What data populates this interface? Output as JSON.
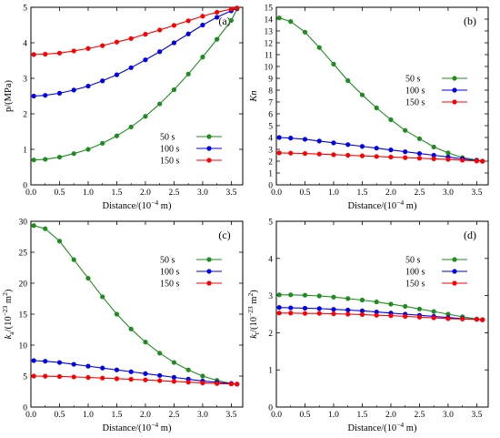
{
  "chart_data": [
    {
      "type": "line",
      "panel_label": "(a)",
      "xlabel": "Distance/(10",
      "xlabel_exp": "−4",
      "xlabel_end": " m)",
      "ylabel": "p/(MPa)",
      "xlim": [
        0,
        3.7
      ],
      "ylim": [
        0,
        5
      ],
      "xticks": [
        "0.0",
        "0.5",
        "1.0",
        "1.5",
        "2.0",
        "2.5",
        "3.0",
        "3.5"
      ],
      "yticks": [
        "0",
        "1",
        "2",
        "3",
        "4",
        "5"
      ],
      "legend_position": "bottom-right",
      "x": [
        0.05,
        0.25,
        0.5,
        0.75,
        1.0,
        1.25,
        1.5,
        1.75,
        2.0,
        2.25,
        2.5,
        2.75,
        3.0,
        3.25,
        3.5,
        3.6
      ],
      "series": [
        {
          "name": "50   s",
          "color": "#1e8c1e",
          "values": [
            0.7,
            0.72,
            0.78,
            0.88,
            1.0,
            1.17,
            1.38,
            1.63,
            1.93,
            2.28,
            2.68,
            3.12,
            3.6,
            4.1,
            4.63,
            4.95
          ]
        },
        {
          "name": "100  s",
          "color": "#0000ee",
          "values": [
            2.5,
            2.52,
            2.58,
            2.67,
            2.78,
            2.93,
            3.1,
            3.3,
            3.52,
            3.75,
            4.0,
            4.25,
            4.5,
            4.72,
            4.9,
            4.97
          ]
        },
        {
          "name": "150  s",
          "color": "#ff0000",
          "values": [
            3.67,
            3.68,
            3.71,
            3.77,
            3.84,
            3.92,
            4.02,
            4.12,
            4.24,
            4.36,
            4.49,
            4.62,
            4.75,
            4.86,
            4.95,
            4.98
          ]
        }
      ]
    },
    {
      "type": "line",
      "panel_label": "(b)",
      "xlabel": "Distance/(10",
      "xlabel_exp": "−4",
      "xlabel_end": " m)",
      "ylabel": "Kn",
      "xlim": [
        0,
        3.7
      ],
      "ylim": [
        0,
        15
      ],
      "xticks": [
        "0.0",
        "0.5",
        "1.0",
        "1.5",
        "2.0",
        "2.5",
        "3.0",
        "3.5"
      ],
      "yticks": [
        "0",
        "1",
        "2",
        "3",
        "4",
        "5",
        "6",
        "7",
        "8",
        "9",
        "10",
        "11",
        "12",
        "13",
        "14",
        "15"
      ],
      "legend_position": "center-right",
      "x": [
        0.05,
        0.25,
        0.5,
        0.75,
        1.0,
        1.25,
        1.5,
        1.75,
        2.0,
        2.25,
        2.5,
        2.75,
        3.0,
        3.25,
        3.5,
        3.6
      ],
      "series": [
        {
          "name": "50   s",
          "color": "#1e8c1e",
          "values": [
            14.1,
            13.8,
            12.9,
            11.6,
            10.2,
            8.8,
            7.6,
            6.5,
            5.5,
            4.6,
            3.9,
            3.2,
            2.7,
            2.3,
            2.1,
            2.0
          ]
        },
        {
          "name": "100  s",
          "color": "#0000ee",
          "values": [
            4.0,
            3.95,
            3.85,
            3.7,
            3.55,
            3.4,
            3.25,
            3.1,
            2.95,
            2.8,
            2.65,
            2.5,
            2.35,
            2.2,
            2.05,
            2.0
          ]
        },
        {
          "name": "150  s",
          "color": "#ff0000",
          "values": [
            2.7,
            2.68,
            2.65,
            2.6,
            2.55,
            2.5,
            2.45,
            2.4,
            2.35,
            2.3,
            2.25,
            2.2,
            2.15,
            2.08,
            2.02,
            2.0
          ]
        }
      ]
    },
    {
      "type": "line",
      "panel_label": "(c)",
      "xlabel": "Distance/(10",
      "xlabel_exp": "−4",
      "xlabel_end": " m)",
      "ylabel": "k",
      "ylabel_sub": "a",
      "ylabel_mid": "/(10",
      "ylabel_exp": "−23",
      "ylabel_end": " m",
      "ylabel_exp2": "2",
      "ylabel_close": ")",
      "xlim": [
        0,
        3.7
      ],
      "ylim": [
        0,
        30
      ],
      "xticks": [
        "0.0",
        "0.5",
        "1.0",
        "1.5",
        "2.0",
        "2.5",
        "3.0",
        "3.5"
      ],
      "yticks": [
        "0",
        "5",
        "10",
        "15",
        "20",
        "25",
        "30"
      ],
      "legend_position": "top-right",
      "x": [
        0.05,
        0.25,
        0.5,
        0.75,
        1.0,
        1.25,
        1.5,
        1.75,
        2.0,
        2.25,
        2.5,
        2.75,
        3.0,
        3.25,
        3.5,
        3.6
      ],
      "series": [
        {
          "name": "50   s",
          "color": "#1e8c1e",
          "values": [
            29.3,
            28.8,
            26.8,
            23.8,
            20.8,
            17.8,
            15.0,
            12.6,
            10.5,
            8.7,
            7.2,
            6.0,
            5.0,
            4.3,
            3.8,
            3.7
          ]
        },
        {
          "name": "100  s",
          "color": "#0000ee",
          "values": [
            7.5,
            7.4,
            7.2,
            6.9,
            6.6,
            6.3,
            6.0,
            5.7,
            5.4,
            5.1,
            4.8,
            4.5,
            4.2,
            4.0,
            3.8,
            3.7
          ]
        },
        {
          "name": "150  s",
          "color": "#ff0000",
          "values": [
            5.0,
            4.98,
            4.93,
            4.86,
            4.78,
            4.68,
            4.58,
            4.48,
            4.38,
            4.26,
            4.14,
            4.02,
            3.9,
            3.8,
            3.72,
            3.7
          ]
        }
      ]
    },
    {
      "type": "line",
      "panel_label": "(d)",
      "xlabel": "Distance/(10",
      "xlabel_exp": "−4",
      "xlabel_end": " m)",
      "ylabel": "k",
      "ylabel_sub": "t",
      "ylabel_mid": "/(10",
      "ylabel_exp": "−23",
      "ylabel_end": " m",
      "ylabel_exp2": "2",
      "ylabel_close": ")",
      "xlim": [
        0,
        3.7
      ],
      "ylim": [
        0,
        5
      ],
      "xticks": [
        "0.0",
        "0.5",
        "1.0",
        "1.5",
        "2.0",
        "2.5",
        "3.0",
        "3.5"
      ],
      "yticks": [
        "0",
        "1",
        "2",
        "3",
        "4",
        "5"
      ],
      "legend_position": "top-right",
      "x": [
        0.05,
        0.25,
        0.5,
        0.75,
        1.0,
        1.25,
        1.5,
        1.75,
        2.0,
        2.25,
        2.5,
        2.75,
        3.0,
        3.25,
        3.5,
        3.6
      ],
      "series": [
        {
          "name": "50   s",
          "color": "#1e8c1e",
          "values": [
            3.02,
            3.02,
            3.01,
            2.99,
            2.96,
            2.92,
            2.88,
            2.83,
            2.77,
            2.71,
            2.64,
            2.57,
            2.5,
            2.43,
            2.37,
            2.35
          ]
        },
        {
          "name": "100  s",
          "color": "#0000ee",
          "values": [
            2.68,
            2.67,
            2.66,
            2.65,
            2.63,
            2.61,
            2.59,
            2.56,
            2.53,
            2.5,
            2.47,
            2.44,
            2.41,
            2.38,
            2.36,
            2.35
          ]
        },
        {
          "name": "150  s",
          "color": "#ff0000",
          "values": [
            2.53,
            2.53,
            2.52,
            2.52,
            2.51,
            2.5,
            2.49,
            2.47,
            2.46,
            2.44,
            2.42,
            2.4,
            2.38,
            2.37,
            2.36,
            2.35
          ]
        }
      ]
    }
  ]
}
